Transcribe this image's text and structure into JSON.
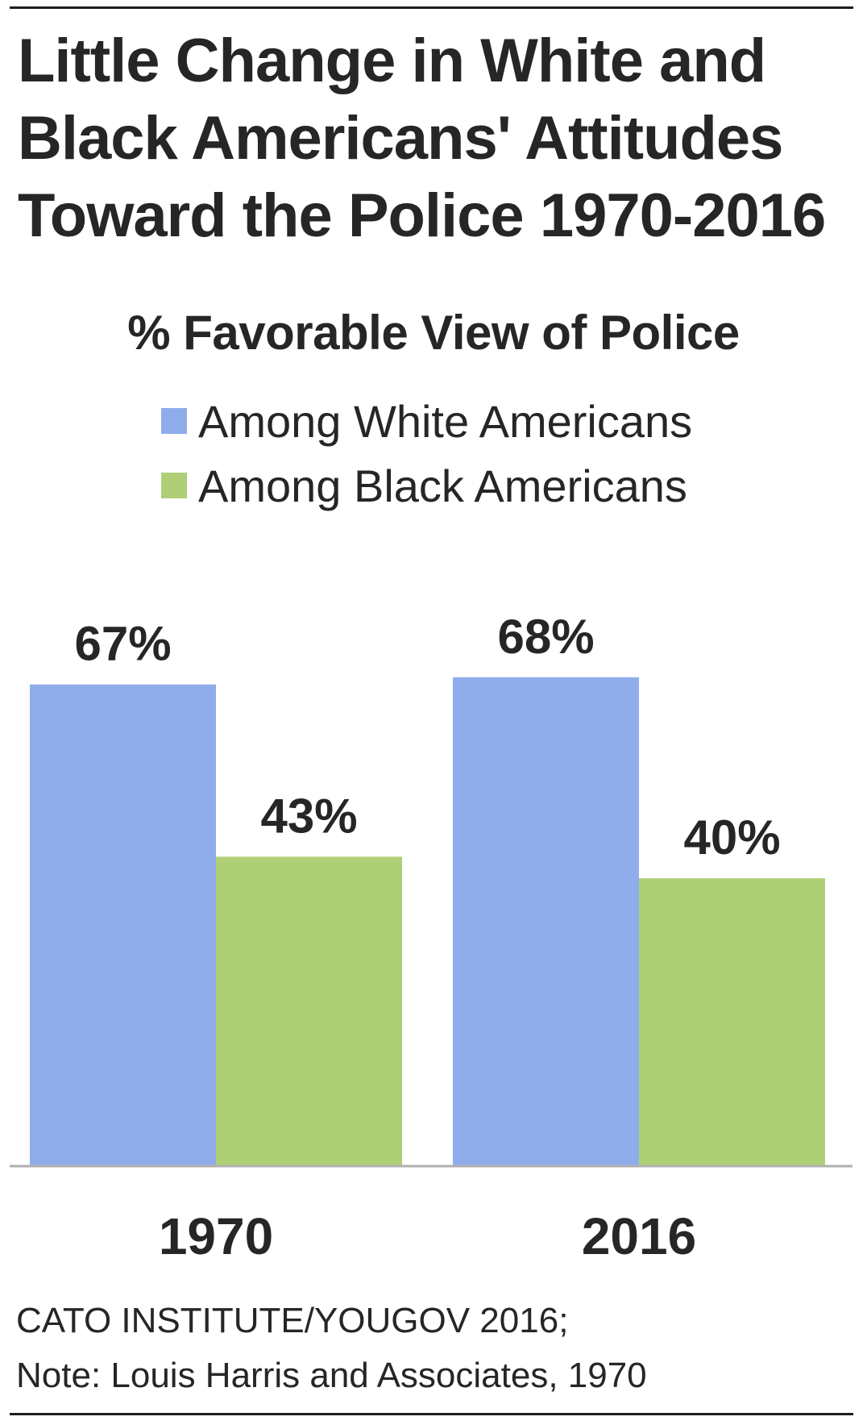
{
  "title_lines": [
    "Little Change in White and",
    "Black Americans' Attitudes",
    "Toward the Police 1970-2016"
  ],
  "chart_data": {
    "type": "bar",
    "title": "% Favorable View of Police",
    "categories": [
      "1970",
      "2016"
    ],
    "series": [
      {
        "name": "Among White Americans",
        "color": "#8fadea",
        "values": [
          67,
          68
        ],
        "labels": [
          "67%",
          "68%"
        ]
      },
      {
        "name": "Among Black Americans",
        "color": "#afcf76",
        "values": [
          43,
          40
        ],
        "labels": [
          "43%",
          "40%"
        ]
      }
    ],
    "ylim": [
      0,
      100
    ],
    "grid": false,
    "legend": "top-left",
    "xlabel": "",
    "ylabel": ""
  },
  "source_lines": [
    "CATO INSTITUTE/YOUGOV 2016;",
    "Note: Louis Harris and Associates, 1970"
  ],
  "colors": {
    "axis": "#b0b0b0",
    "rule": "#1e1e1e"
  }
}
